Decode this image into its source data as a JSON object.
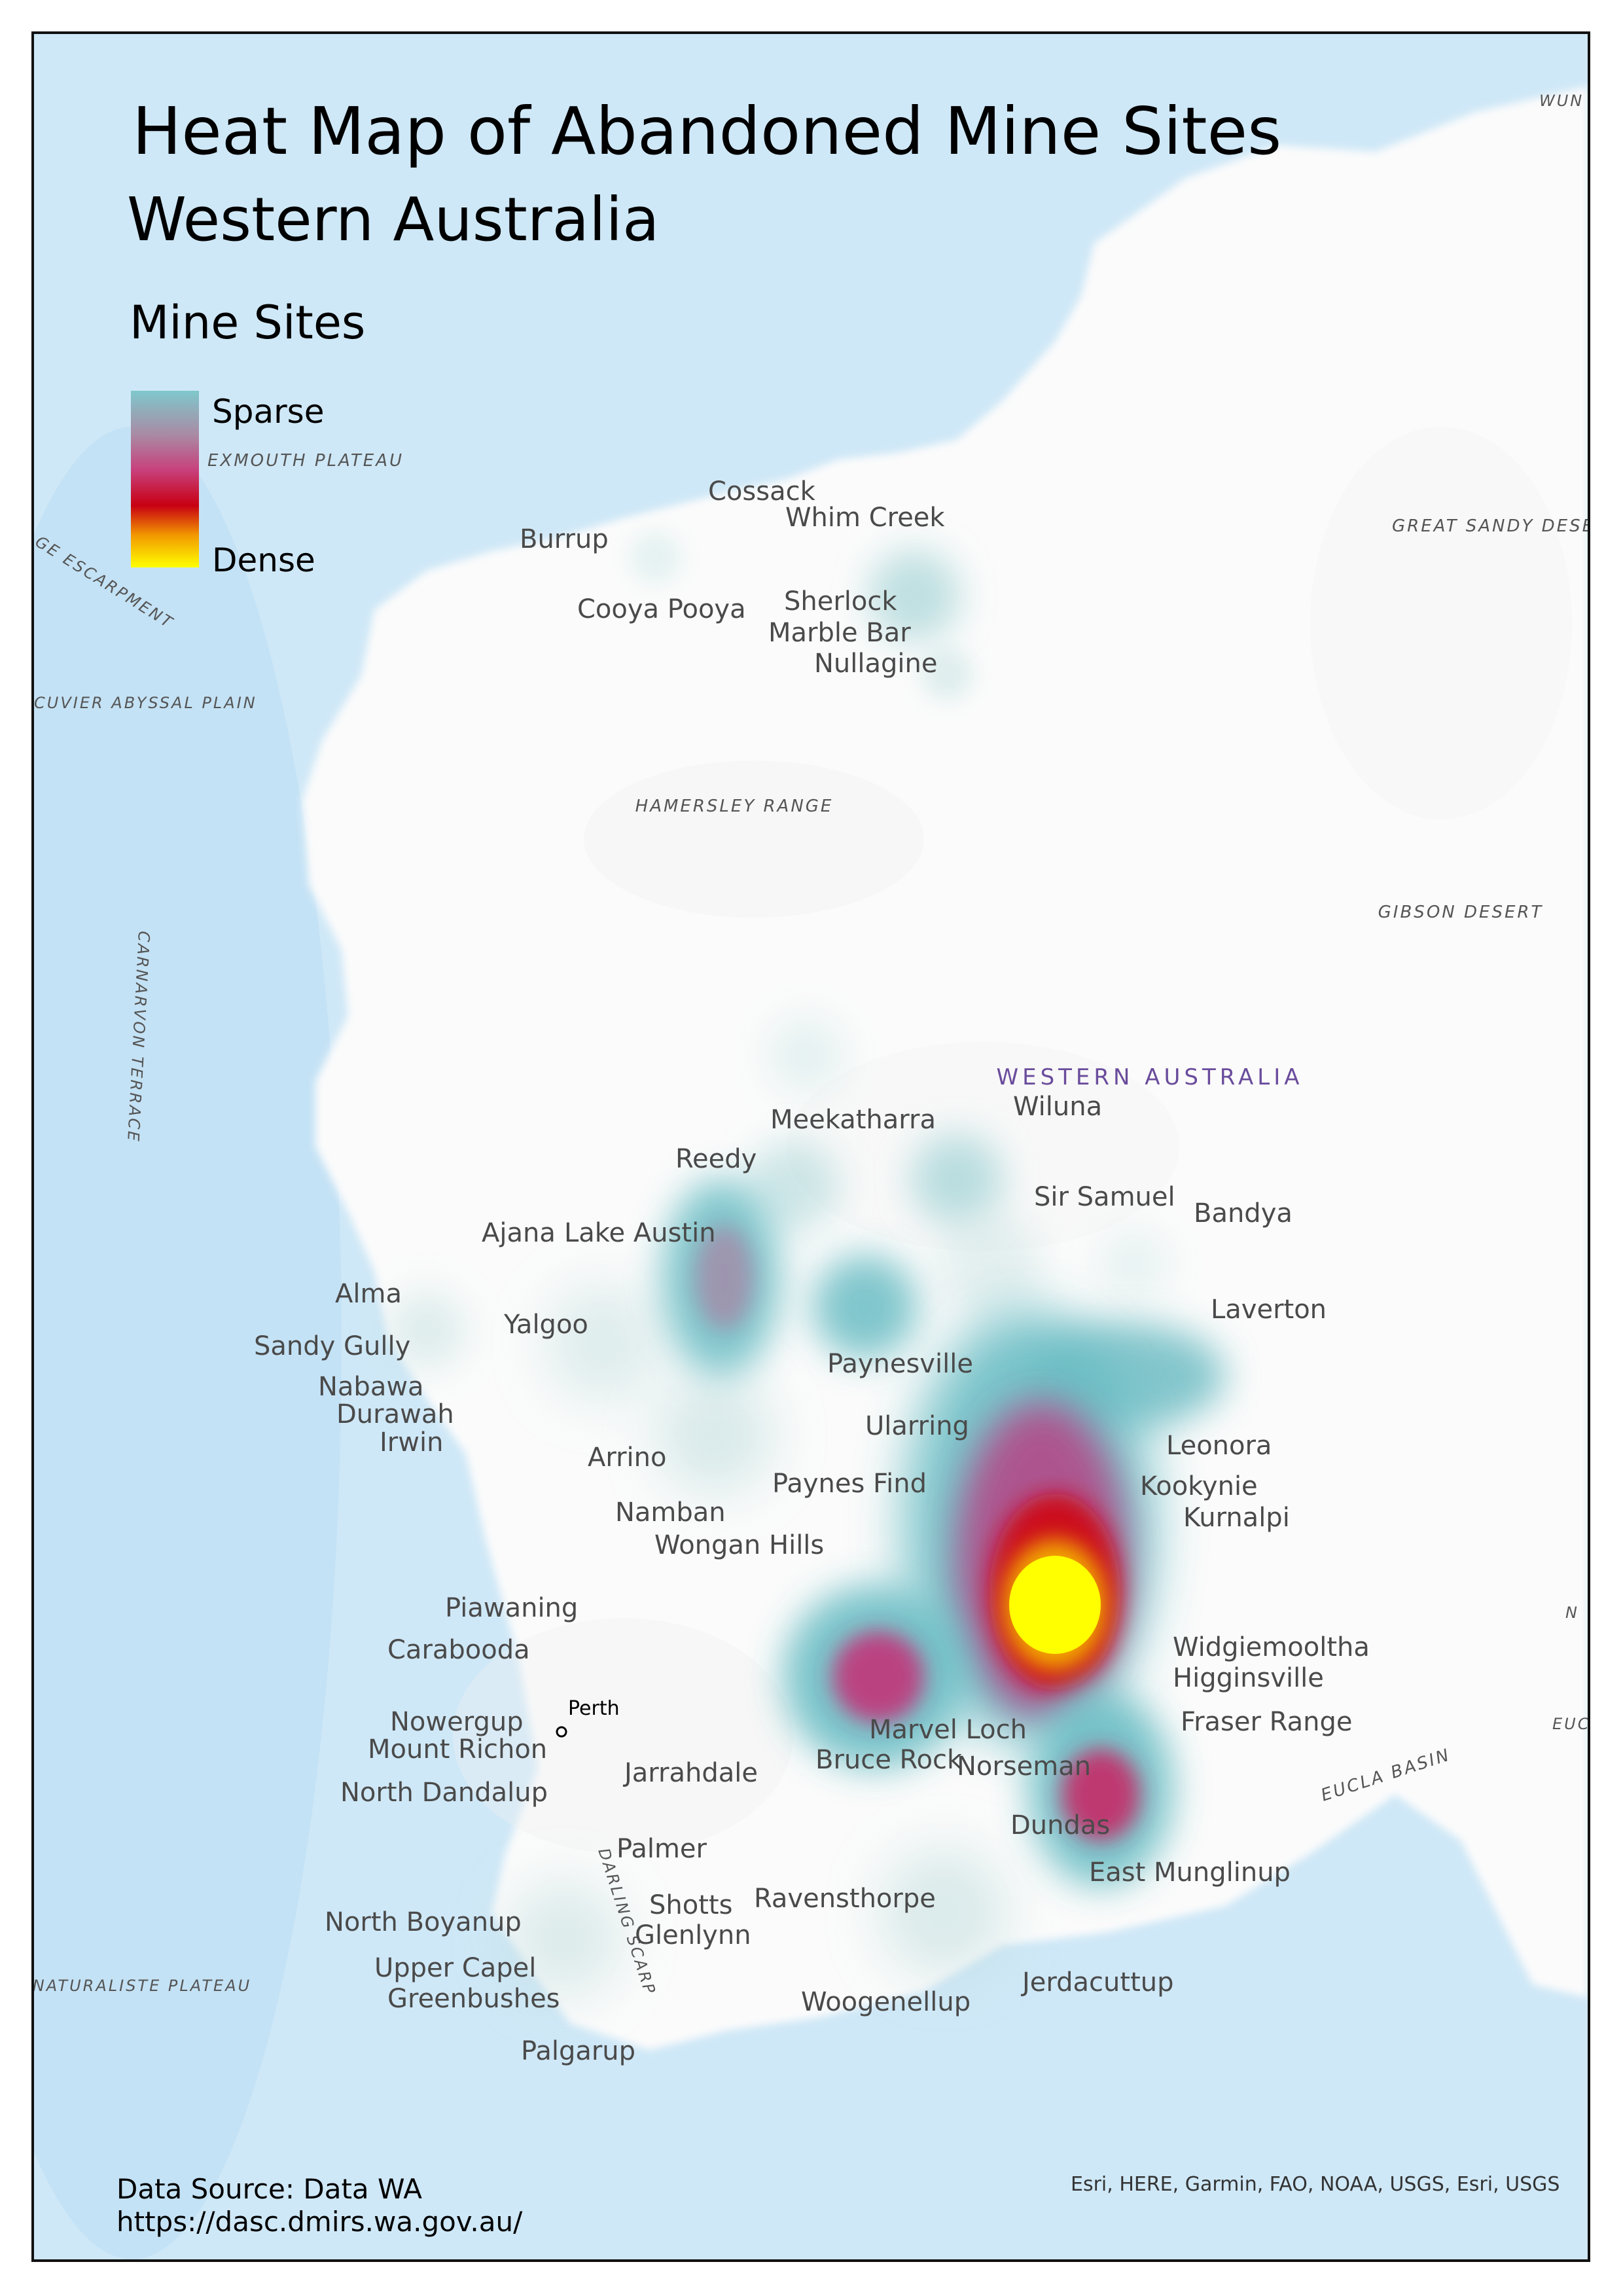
{
  "map": {
    "title": "Heat Map of Abandoned Mine Sites",
    "subtitle": "Western Australia",
    "legend": {
      "title": "Mine Sites",
      "sparse_label": "Sparse",
      "dense_label": "Dense",
      "colors": [
        "#7fc8cc",
        "#a98aa4",
        "#c8407c",
        "#c80012",
        "#f29a00",
        "#ffff00"
      ]
    },
    "source": {
      "line1": "Data Source: Data WA",
      "line2": "https://dasc.dmirs.wa.gov.au/"
    },
    "credits": "Esri, HERE, Garmin, FAO, NOAA, USGS, Esri, USGS",
    "colors": {
      "ocean": "#cfe8f7",
      "land": "#fbfbfb",
      "region_label": "#6a4c9c",
      "place_label": "#4a4a4a",
      "feature_label": "#555555"
    },
    "places": [
      "Cossack",
      "Whim Creek",
      "Burrup",
      "Cooya Pooya",
      "Sherlock",
      "Marble Bar",
      "Nullagine",
      "Meekatharra",
      "Wiluna",
      "Reedy",
      "Sir Samuel",
      "Bandya",
      "Ajana",
      "Lake Austin",
      "Alma",
      "Yalgoo",
      "Sandy Gully",
      "Laverton",
      "Paynesville",
      "Nabawa",
      "Durawah",
      "Irwin",
      "Ularring",
      "Leonora",
      "Arrino",
      "Paynes Find",
      "Kookynie",
      "Namban",
      "Kurnalpi",
      "Wongan Hills",
      "Piawaning",
      "Widgiemooltha",
      "Carabooda",
      "Higginsville",
      "Perth",
      "Fraser Range",
      "Nowergup",
      "Marvel Loch",
      "Mount Richon",
      "Bruce Rock",
      "Norseman",
      "Jarrahdale",
      "North Dandalup",
      "Dundas",
      "Palmer",
      "East Munglinup",
      "Shotts",
      "Ravensthorpe",
      "North Boyanup",
      "Glenlynn",
      "Upper Capel",
      "Jerdacuttup",
      "Greenbushes",
      "Woogenellup",
      "Palgarup"
    ],
    "features": [
      "EXMOUTH PLATEAU",
      "GREAT SANDY DESERT",
      "HAMERSLEY RANGE",
      "GIBSON DESERT",
      "CUVIER ABYSSAL PLAIN",
      "CARNARVON TERRACE",
      "EUCLA BASIN",
      "NATURALISTE PLATEAU",
      "DARLING SCARP",
      "GE ESCARPMENT",
      "WUN MILI RA",
      "EUC",
      "N"
    ],
    "region_label": "WESTERN AUSTRALIA"
  }
}
